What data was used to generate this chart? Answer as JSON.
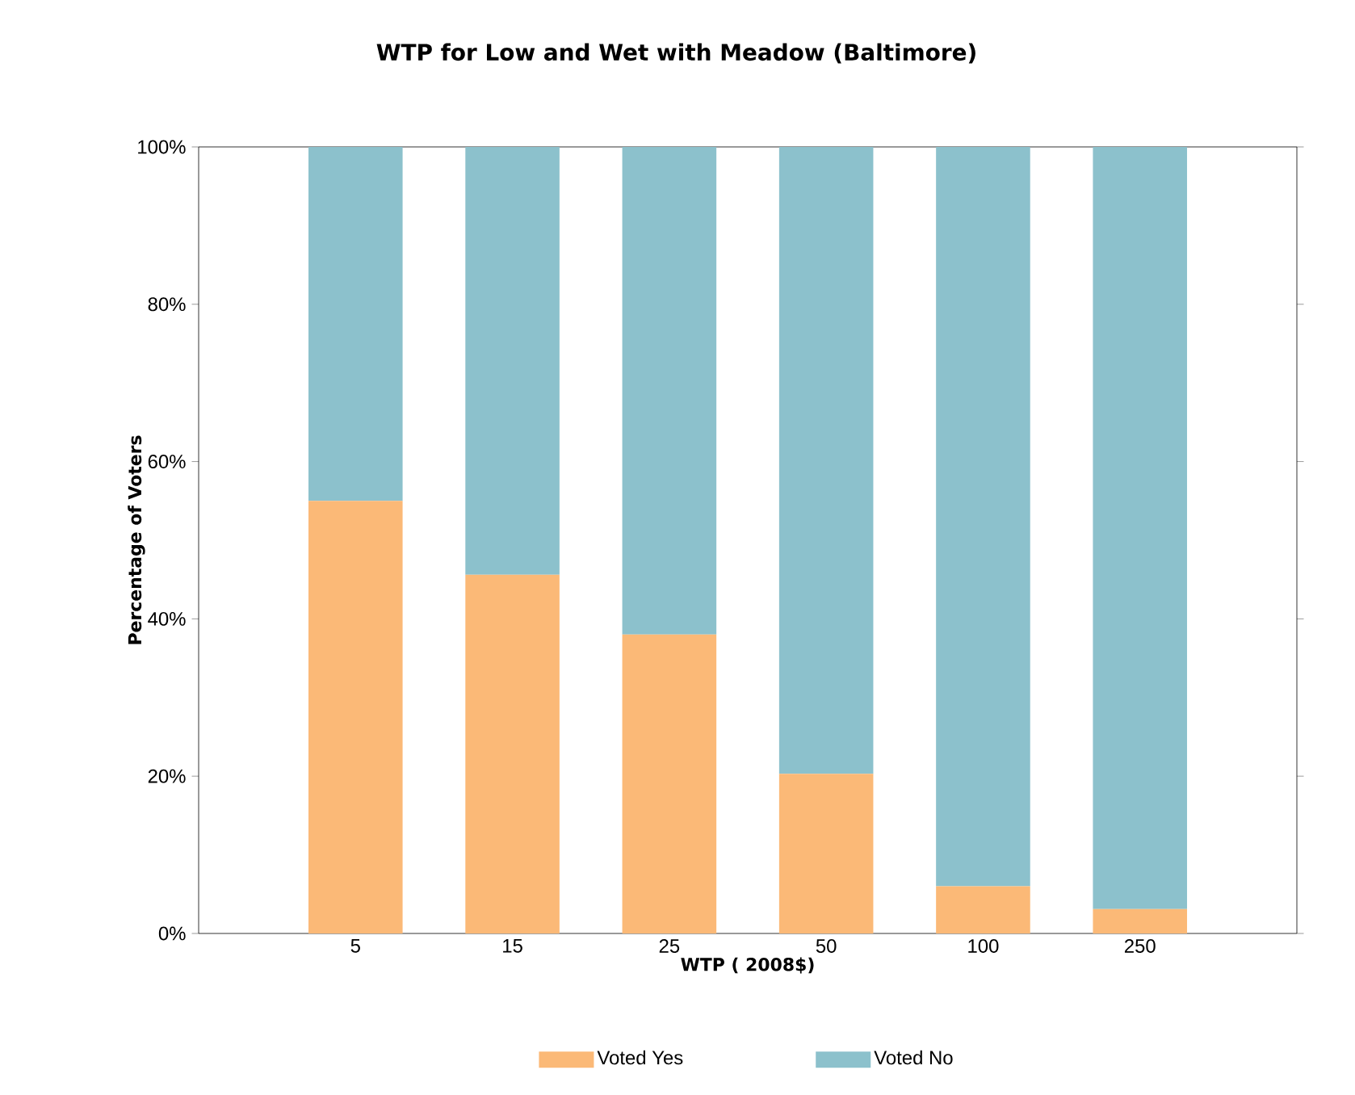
{
  "chart_data": {
    "type": "bar",
    "title": "WTP for Low and Wet with Meadow (Baltimore)",
    "xlabel": "WTP ( 2008$)",
    "ylabel": "Percentage of Voters",
    "categories": [
      "5",
      "15",
      "25",
      "50",
      "100",
      "250"
    ],
    "stacked": true,
    "series": [
      {
        "name": "Voted Yes",
        "color": "#fbb977",
        "values": [
          55.0,
          45.6,
          38.0,
          20.3,
          6.0,
          3.1
        ]
      },
      {
        "name": "Voted No",
        "color": "#8cc1cc",
        "values": [
          45.0,
          54.4,
          62.0,
          79.7,
          94.0,
          96.9
        ]
      }
    ],
    "ylim": [
      0,
      100
    ],
    "yticks": [
      {
        "value": 0,
        "label": "0%"
      },
      {
        "value": 20,
        "label": "20%"
      },
      {
        "value": 40,
        "label": "40%"
      },
      {
        "value": 60,
        "label": "60%"
      },
      {
        "value": 80,
        "label": "80%"
      },
      {
        "value": 100,
        "label": "100%"
      }
    ],
    "grid": false,
    "legend": "bottom"
  }
}
